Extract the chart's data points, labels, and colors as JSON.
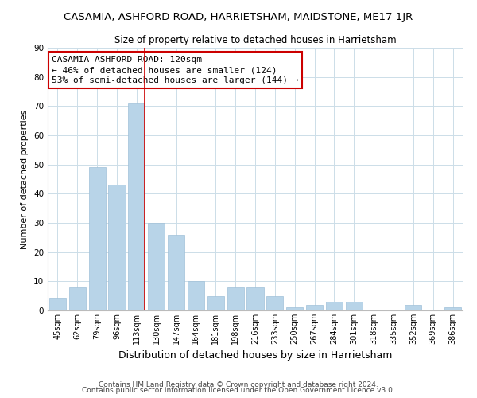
{
  "title": "CASAMIA, ASHFORD ROAD, HARRIETSHAM, MAIDSTONE, ME17 1JR",
  "subtitle": "Size of property relative to detached houses in Harrietsham",
  "xlabel": "Distribution of detached houses by size in Harrietsham",
  "ylabel": "Number of detached properties",
  "bar_labels": [
    "45sqm",
    "62sqm",
    "79sqm",
    "96sqm",
    "113sqm",
    "130sqm",
    "147sqm",
    "164sqm",
    "181sqm",
    "198sqm",
    "216sqm",
    "233sqm",
    "250sqm",
    "267sqm",
    "284sqm",
    "301sqm",
    "318sqm",
    "335sqm",
    "352sqm",
    "369sqm",
    "386sqm"
  ],
  "bar_values": [
    4,
    8,
    49,
    43,
    71,
    30,
    26,
    10,
    5,
    8,
    8,
    5,
    1,
    2,
    3,
    3,
    0,
    0,
    2,
    0,
    1
  ],
  "bar_color": "#b8d4e8",
  "vline_color": "#cc0000",
  "vline_index": 4,
  "ylim": [
    0,
    90
  ],
  "yticks": [
    0,
    10,
    20,
    30,
    40,
    50,
    60,
    70,
    80,
    90
  ],
  "annotation_title": "CASAMIA ASHFORD ROAD: 120sqm",
  "annotation_line1": "← 46% of detached houses are smaller (124)",
  "annotation_line2": "53% of semi-detached houses are larger (144) →",
  "footer1": "Contains HM Land Registry data © Crown copyright and database right 2024.",
  "footer2": "Contains public sector information licensed under the Open Government Licence v3.0.",
  "background_color": "#ffffff",
  "grid_color": "#ccdde8",
  "title_fontsize": 9.5,
  "subtitle_fontsize": 8.5,
  "ylabel_fontsize": 8,
  "xlabel_fontsize": 9,
  "tick_fontsize": 7,
  "annotation_fontsize": 8,
  "footer_fontsize": 6.5
}
